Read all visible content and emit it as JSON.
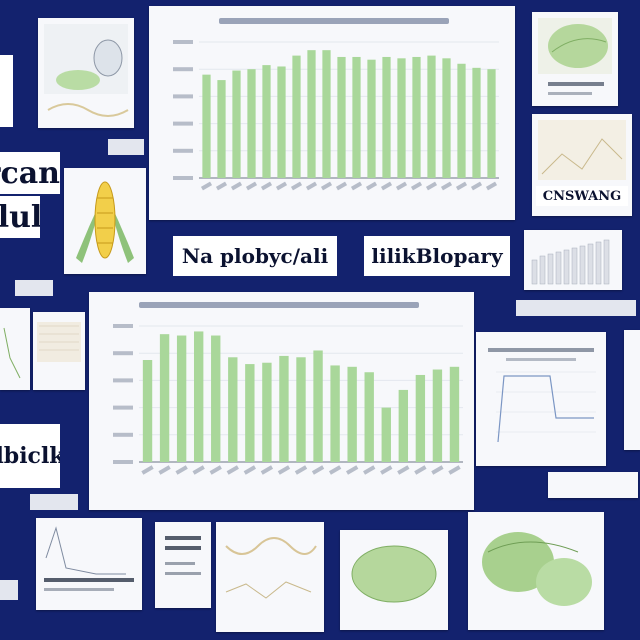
{
  "words": {
    "w_tl1": "rcan",
    "w_tl2": "lul",
    "w_mid": "Na plobyc/ali",
    "w_mid2": "lilikBlopary",
    "w_tr": "CNSWANG",
    "w_left_small": "lbiclk"
  },
  "chart_data": [
    {
      "type": "bar",
      "title": "",
      "xlabel": "",
      "ylabel": "",
      "ylim": [
        0,
        10
      ],
      "values": [
        7.6,
        7.2,
        7.9,
        8.0,
        8.3,
        8.2,
        9.0,
        9.4,
        9.4,
        8.9,
        8.9,
        8.7,
        8.9,
        8.8,
        8.9,
        9.0,
        8.8,
        8.4,
        8.1,
        8.0
      ],
      "color": "#a9d79a",
      "grid": true
    },
    {
      "type": "bar",
      "title": "",
      "xlabel": "",
      "ylabel": "",
      "ylim": [
        0,
        10
      ],
      "values": [
        7.5,
        9.4,
        9.3,
        9.6,
        9.3,
        7.7,
        7.2,
        7.3,
        7.8,
        7.7,
        8.2,
        7.1,
        7.0,
        6.6,
        4.0,
        5.3,
        6.4,
        6.8,
        7.0
      ],
      "color": "#a9d79a",
      "grid": true
    }
  ],
  "colors": {
    "background": "#13226e",
    "bar": "#a9d79a",
    "card": "#f7f8fb"
  }
}
